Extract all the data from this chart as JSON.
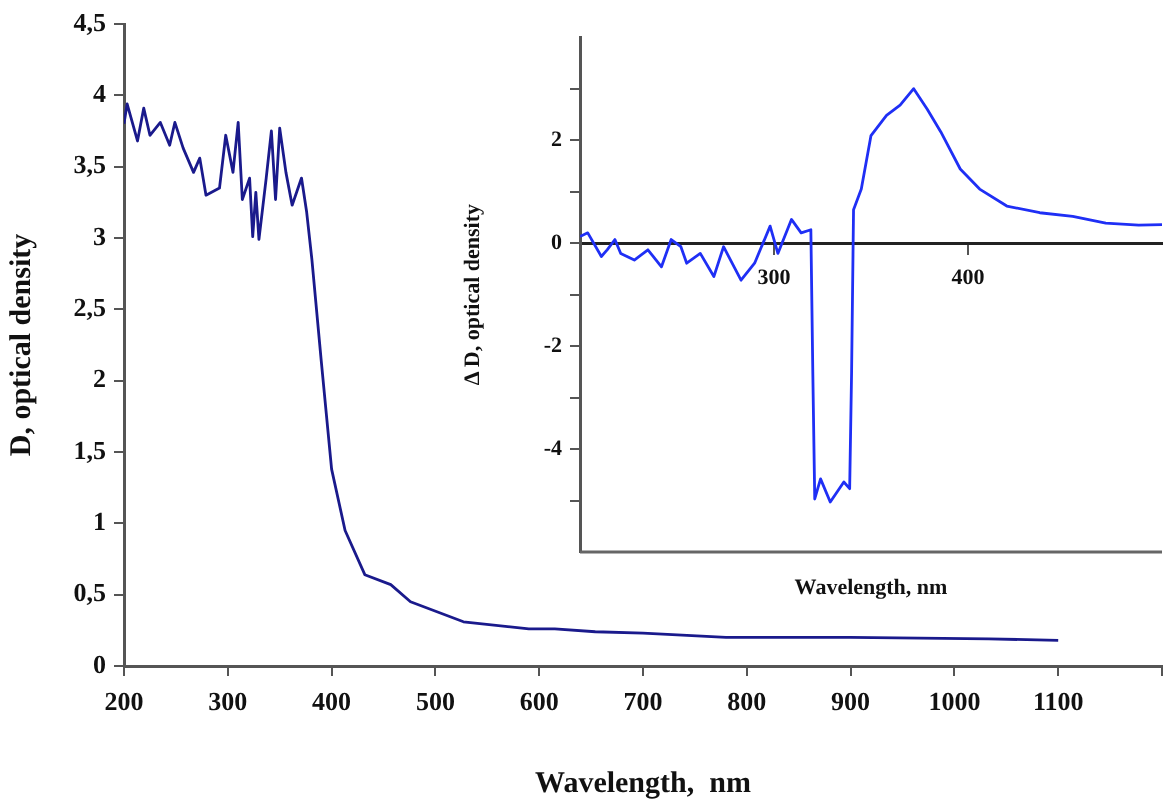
{
  "chart_data": [
    {
      "type": "line",
      "xlabel": "Wavelength,  nm",
      "ylabel": "D, optical density",
      "xlim": [
        200,
        1200
      ],
      "ylim": [
        0,
        4.5
      ],
      "xticks": [
        200,
        300,
        400,
        500,
        600,
        700,
        800,
        900,
        1000,
        1100,
        {
          "value": 1200,
          "label": null
        }
      ],
      "yticks": [
        0,
        {
          "value": 0.5,
          "label": "0,5"
        },
        1,
        {
          "value": 1.5,
          "label": "1,5"
        },
        2,
        {
          "value": 2.5,
          "label": "2,5"
        },
        3,
        {
          "value": 3.5,
          "label": "3,5"
        },
        4,
        {
          "value": 4.5,
          "label": "4,5"
        }
      ],
      "grid": false,
      "legend": false,
      "marker": "none",
      "line_style": "solid",
      "series": [
        {
          "color": "#1a1a8c",
          "x": [
            200,
            203,
            213,
            219,
            225,
            235,
            244,
            249,
            257,
            267,
            273,
            279,
            292,
            298,
            305,
            310,
            314,
            321,
            324,
            327,
            330,
            337,
            342,
            346,
            350,
            356,
            362,
            371,
            376,
            381,
            390,
            400,
            413,
            432,
            457,
            476,
            527,
            590,
            615,
            654,
            700,
            780,
            900,
            1033,
            1100
          ],
          "values": [
            3.8,
            3.94,
            3.68,
            3.91,
            3.72,
            3.81,
            3.65,
            3.81,
            3.63,
            3.46,
            3.56,
            3.3,
            3.35,
            3.72,
            3.46,
            3.81,
            3.27,
            3.42,
            3.01,
            3.32,
            2.99,
            3.42,
            3.75,
            3.27,
            3.77,
            3.46,
            3.23,
            3.42,
            3.18,
            2.85,
            2.14,
            1.38,
            0.95,
            0.64,
            0.57,
            0.45,
            0.31,
            0.26,
            0.26,
            0.24,
            0.23,
            0.2,
            0.2,
            0.19,
            0.18
          ]
        }
      ]
    },
    {
      "type": "line",
      "xlabel": "Wavelength, nm",
      "ylabel": "Δ D, optical density",
      "xlim": [
        200,
        500
      ],
      "ylim": [
        -6,
        4
      ],
      "xticks": [
        300,
        400
      ],
      "yticks": [
        {
          "value": -5,
          "label": null
        },
        -4,
        {
          "value": -3,
          "label": null
        },
        -2,
        {
          "value": -1,
          "label": null
        },
        0,
        {
          "value": 1,
          "label": null
        },
        2,
        {
          "value": 3,
          "label": null
        }
      ],
      "grid": false,
      "legend": false,
      "marker": "none",
      "line_style": "solid",
      "series": [
        {
          "color": "#1f2ff5",
          "x": [
            200,
            204,
            211,
            214,
            218,
            221,
            228,
            235,
            242,
            247,
            252,
            255,
            262,
            269,
            274,
            283,
            290,
            298,
            302,
            309,
            314,
            319,
            320,
            321,
            324,
            329,
            336,
            339,
            340,
            341,
            345,
            350,
            358,
            365,
            372,
            379,
            386,
            396,
            406,
            420,
            437,
            454,
            471,
            488,
            500
          ],
          "values": [
            0.13,
            0.2,
            -0.26,
            -0.13,
            0.07,
            -0.2,
            -0.33,
            -0.13,
            -0.46,
            0.07,
            -0.07,
            -0.39,
            -0.2,
            -0.65,
            -0.07,
            -0.72,
            -0.39,
            0.33,
            -0.2,
            0.46,
            0.2,
            0.26,
            -2.5,
            -4.97,
            -4.58,
            -5.03,
            -4.64,
            -4.77,
            -2.5,
            0.65,
            1.05,
            2.09,
            2.48,
            2.68,
            3.0,
            2.6,
            2.16,
            1.44,
            1.05,
            0.72,
            0.59,
            0.52,
            0.39,
            0.35,
            0.36
          ]
        }
      ]
    }
  ]
}
